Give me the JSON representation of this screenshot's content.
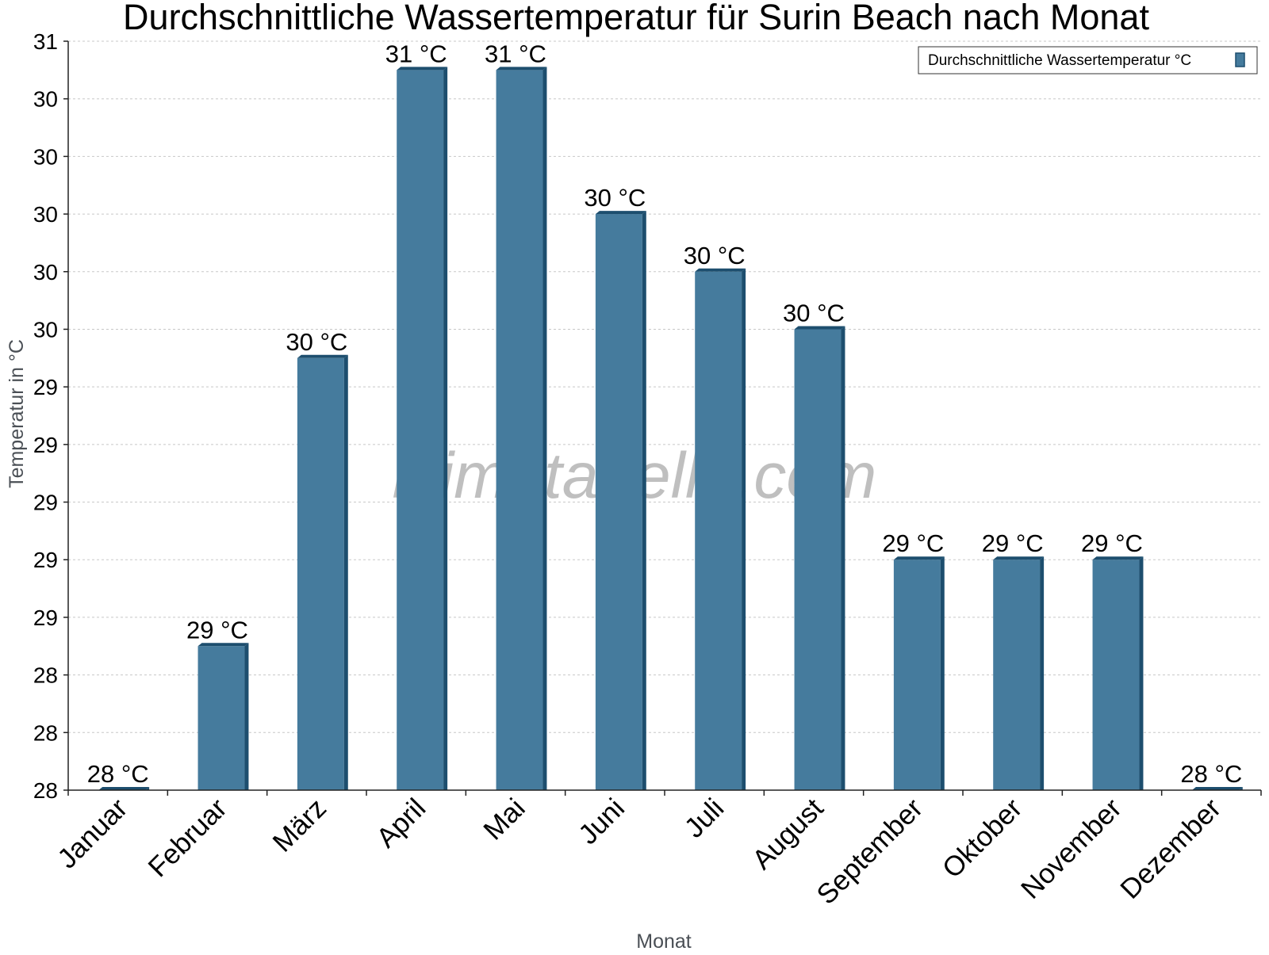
{
  "chart_data": {
    "type": "bar",
    "title": "Durchschnittliche Wassertemperatur für Surin Beach nach Monat",
    "xlabel": "Monat",
    "ylabel": "Temperatur in °C",
    "categories": [
      "Januar",
      "Februar",
      "März",
      "April",
      "Mai",
      "Juni",
      "Juli",
      "August",
      "September",
      "Oktober",
      "November",
      "Dezember"
    ],
    "series": [
      {
        "name": "Durchschnittliche Wassertemperatur °C",
        "values": [
          28.0,
          28.5,
          29.5,
          30.5,
          30.5,
          30.0,
          29.8,
          29.6,
          28.8,
          28.8,
          28.8,
          28.0
        ],
        "labels": [
          "28 °C",
          "29 °C",
          "30 °C",
          "31 °C",
          "31 °C",
          "30 °C",
          "30 °C",
          "30 °C",
          "29 °C",
          "29 °C",
          "29 °C",
          "28 °C"
        ]
      }
    ],
    "ylim": [
      28,
      30.6
    ],
    "yticks": [
      28.0,
      28.2,
      28.4,
      28.6,
      28.8,
      29.0,
      29.2,
      29.4,
      29.6,
      29.8,
      30.0,
      30.2,
      30.4,
      30.6
    ],
    "ytick_labels": [
      "28",
      "28",
      "28",
      "29",
      "29",
      "29",
      "29",
      "29",
      "30",
      "30",
      "30",
      "30",
      "30",
      "31"
    ],
    "grid": true,
    "legend_position": "top-right",
    "colors": {
      "bar_front": "#457b9d",
      "bar_side": "#1d4e6e",
      "grid": "#c8c8c8"
    },
    "watermark": "klimatabelle.com"
  }
}
